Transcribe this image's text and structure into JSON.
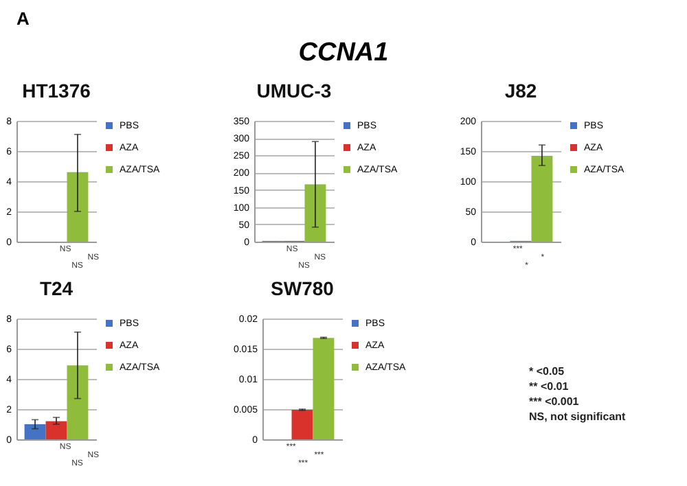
{
  "chart_data": [
    {
      "type": "other",
      "title": "CCNA1",
      "annotations": [
        "A"
      ]
    },
    {
      "type": "bar",
      "title": "HT1376",
      "categories": [
        null
      ],
      "ylim": [
        0,
        8
      ],
      "yticks": [
        0,
        2,
        4,
        6,
        8
      ],
      "grid": "y",
      "legend": "right",
      "tick_labels": "y",
      "annotations": [
        "NS",
        "NS",
        "NS"
      ],
      "series": [
        {
          "name": "PBS",
          "color": "#4472c4",
          "values": [
            0
          ],
          "errors": [
            null
          ]
        },
        {
          "name": "AZA",
          "color": "#d9312b",
          "values": [
            0
          ],
          "errors": [
            null
          ]
        },
        {
          "name": "AZA/TSA",
          "color": "#8fbc3a",
          "values": [
            4.6
          ],
          "errors": [
            [
              2.0,
              7.1
            ]
          ]
        }
      ]
    },
    {
      "type": "bar",
      "title": "UMUC-3",
      "categories": [
        null
      ],
      "ylim": [
        0,
        350
      ],
      "yticks": [
        0,
        50,
        100,
        150,
        200,
        250,
        300,
        350
      ],
      "grid": "y",
      "legend": "right",
      "tick_labels": "y",
      "annotations": [
        "NS",
        "NS",
        "NS"
      ],
      "series": [
        {
          "name": "PBS",
          "color": "#4472c4",
          "values": [
            2
          ],
          "errors": [
            null
          ]
        },
        {
          "name": "AZA",
          "color": "#d9312b",
          "values": [
            2
          ],
          "errors": [
            null
          ]
        },
        {
          "name": "AZA/TSA",
          "color": "#8fbc3a",
          "values": [
            166
          ],
          "errors": [
            [
              42,
              290
            ]
          ]
        }
      ]
    },
    {
      "type": "bar",
      "title": "J82",
      "categories": [
        null
      ],
      "ylim": [
        0,
        200
      ],
      "yticks": [
        0,
        50,
        100,
        150,
        200
      ],
      "grid": "y",
      "legend": "right",
      "tick_labels": "y",
      "annotations": [
        "***",
        "*",
        "*"
      ],
      "series": [
        {
          "name": "PBS",
          "color": "#4472c4",
          "values": [
            0
          ],
          "errors": [
            null
          ]
        },
        {
          "name": "AZA",
          "color": "#d9312b",
          "values": [
            1
          ],
          "errors": [
            null
          ]
        },
        {
          "name": "AZA/TSA",
          "color": "#8fbc3a",
          "values": [
            142
          ],
          "errors": [
            [
              126,
              160
            ]
          ]
        }
      ]
    },
    {
      "type": "bar",
      "title": "T24",
      "categories": [
        null
      ],
      "ylim": [
        0,
        8
      ],
      "yticks": [
        0,
        2,
        4,
        6,
        8
      ],
      "grid": "y",
      "legend": "right",
      "tick_labels": "y",
      "annotations": [
        "NS",
        "NS",
        "NS"
      ],
      "series": [
        {
          "name": "PBS",
          "color": "#4472c4",
          "values": [
            1.0
          ],
          "errors": [
            [
              0.7,
              1.3
            ]
          ]
        },
        {
          "name": "AZA",
          "color": "#d9312b",
          "values": [
            1.2
          ],
          "errors": [
            [
              1.0,
              1.45
            ]
          ]
        },
        {
          "name": "AZA/TSA",
          "color": "#8fbc3a",
          "values": [
            4.9
          ],
          "errors": [
            [
              2.7,
              7.1
            ]
          ]
        }
      ]
    },
    {
      "type": "bar",
      "title": "SW780",
      "categories": [
        null
      ],
      "ylim": [
        0,
        0.02
      ],
      "yticks": [
        0,
        0.005,
        0.01,
        0.015,
        0.02
      ],
      "grid": "y",
      "legend": "right",
      "tick_labels": "y",
      "annotations": [
        "***",
        "***",
        "***"
      ],
      "series": [
        {
          "name": "PBS",
          "color": "#4472c4",
          "values": [
            0
          ],
          "errors": [
            null
          ]
        },
        {
          "name": "AZA",
          "color": "#d9312b",
          "values": [
            0.0049
          ],
          "errors": [
            [
              0.0048,
              0.005
            ]
          ]
        },
        {
          "name": "AZA/TSA",
          "color": "#8fbc3a",
          "values": [
            0.0168
          ],
          "errors": [
            [
              0.0167,
              0.0169
            ]
          ]
        }
      ]
    },
    {
      "type": "other",
      "annotations": [
        "* <0.05",
        "** <0.01",
        "*** <0.001",
        "NS, not significant"
      ]
    }
  ]
}
